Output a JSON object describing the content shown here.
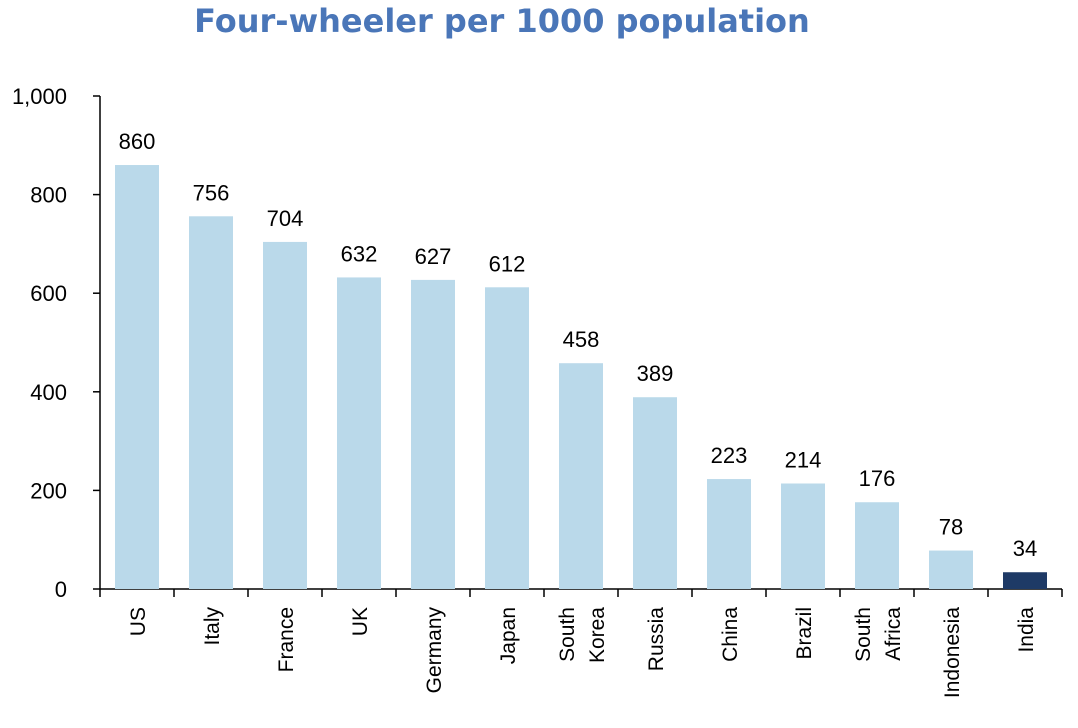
{
  "chart_data": {
    "type": "bar",
    "title": "Four-wheeler per 1000 population",
    "xlabel": "",
    "ylabel": "",
    "ylim": [
      0,
      1000
    ],
    "yticks": [
      0,
      200,
      400,
      600,
      800,
      1000
    ],
    "ytick_labels": [
      "0",
      "200",
      "400",
      "600",
      "800",
      "1,000"
    ],
    "categories": [
      "US",
      "Italy",
      "France",
      "UK",
      "Germany",
      "Japan",
      "South Korea",
      "Russia",
      "China",
      "Brazil",
      "South Africa",
      "Indonesia",
      "India"
    ],
    "values": [
      860,
      756,
      704,
      632,
      627,
      612,
      458,
      389,
      223,
      214,
      176,
      78,
      34
    ],
    "grid": false,
    "legend": "none"
  },
  "colors": {
    "title": "#4A76B8",
    "bar": "#BAD9EA",
    "highlight_bar": "#1E3A66",
    "highlight_category": "India",
    "axis": "#000000"
  }
}
